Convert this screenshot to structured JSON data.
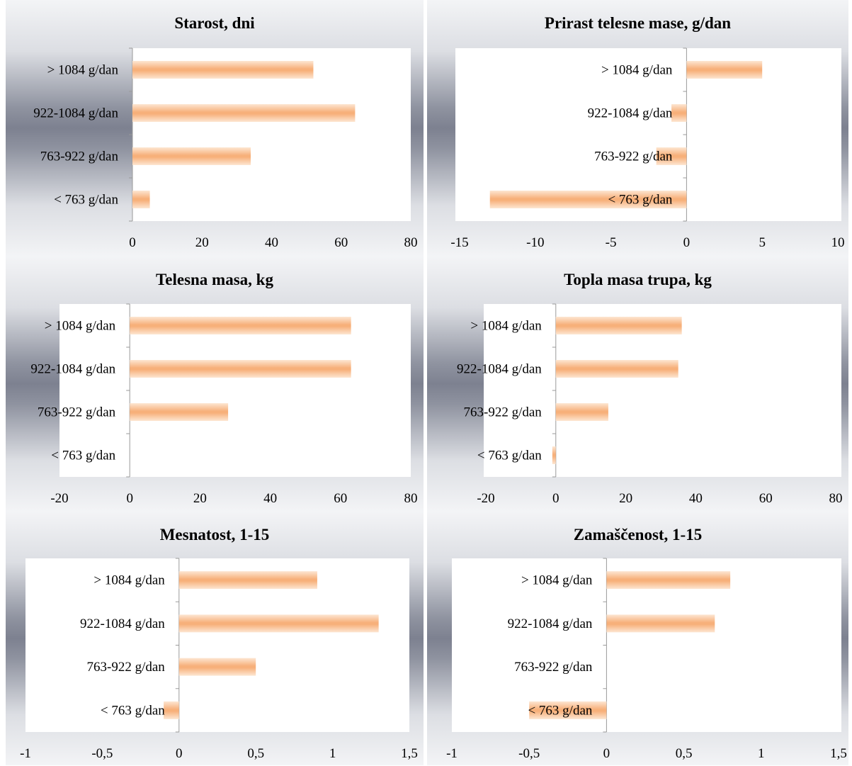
{
  "chart_data": [
    {
      "type": "bar",
      "orientation": "horizontal",
      "title": "Starost, dni",
      "categories": [
        "> 1084 g/dan",
        "922-1084 g/dan",
        "763-922 g/dan",
        "< 763 g/dan"
      ],
      "values": [
        52,
        64,
        34,
        5
      ],
      "xlim": [
        0,
        80
      ],
      "ticks": [
        "0",
        "20",
        "40",
        "60",
        "80"
      ],
      "colors": {
        "bar": "#f7b07a",
        "bar_light": "#fde6d2"
      }
    },
    {
      "type": "bar",
      "orientation": "horizontal",
      "title": "Prirast telesne mase, g/dan",
      "categories": [
        "> 1084 g/dan",
        "922-1084 g/dan",
        "763-922 g/dan",
        "< 763 g/dan"
      ],
      "values": [
        5,
        -1,
        -2,
        -13
      ],
      "xlim": [
        -15,
        10
      ],
      "ticks": [
        "-15",
        "-10",
        "-5",
        "0",
        "5",
        "10"
      ],
      "colors": {
        "bar": "#f7b07a",
        "bar_light": "#fde6d2"
      }
    },
    {
      "type": "bar",
      "orientation": "horizontal",
      "title": "Telesna masa, kg",
      "categories": [
        "> 1084 g/dan",
        "922-1084 g/dan",
        "763-922 g/dan",
        "< 763 g/dan"
      ],
      "values": [
        63,
        63,
        28,
        0
      ],
      "xlim": [
        -20,
        80
      ],
      "ticks": [
        "-20",
        "0",
        "20",
        "40",
        "60",
        "80"
      ],
      "colors": {
        "bar": "#f7b07a",
        "bar_light": "#fde6d2"
      }
    },
    {
      "type": "bar",
      "orientation": "horizontal",
      "title": "Topla masa trupa, kg",
      "categories": [
        "> 1084 g/dan",
        "922-1084 g/dan",
        "763-922 g/dan",
        "< 763 g/dan"
      ],
      "values": [
        36,
        35,
        15,
        -1
      ],
      "xlim": [
        -20,
        80
      ],
      "ticks": [
        "-20",
        "0",
        "20",
        "40",
        "60",
        "80"
      ],
      "colors": {
        "bar": "#f7b07a",
        "bar_light": "#fde6d2"
      }
    },
    {
      "type": "bar",
      "orientation": "horizontal",
      "title": "Mesnatost, 1-15",
      "categories": [
        "> 1084 g/dan",
        "922-1084 g/dan",
        "763-922 g/dan",
        "< 763 g/dan"
      ],
      "values": [
        0.9,
        1.3,
        0.5,
        -0.1
      ],
      "xlim": [
        -1,
        1.5
      ],
      "ticks": [
        "-1",
        "-0,5",
        "0",
        "0,5",
        "1",
        "1,5"
      ],
      "colors": {
        "bar": "#f7b07a",
        "bar_light": "#fde6d2"
      }
    },
    {
      "type": "bar",
      "orientation": "horizontal",
      "title": "Zamaščenost, 1-15",
      "categories": [
        "> 1084 g/dan",
        "922-1084 g/dan",
        "763-922 g/dan",
        "< 763 g/dan"
      ],
      "values": [
        0.8,
        0.7,
        0,
        -0.5
      ],
      "xlim": [
        -1,
        1.5
      ],
      "ticks": [
        "-1",
        "-0,5",
        "0",
        "0,5",
        "1",
        "1,5"
      ],
      "colors": {
        "bar": "#f7b07a",
        "bar_light": "#fde6d2"
      }
    }
  ]
}
